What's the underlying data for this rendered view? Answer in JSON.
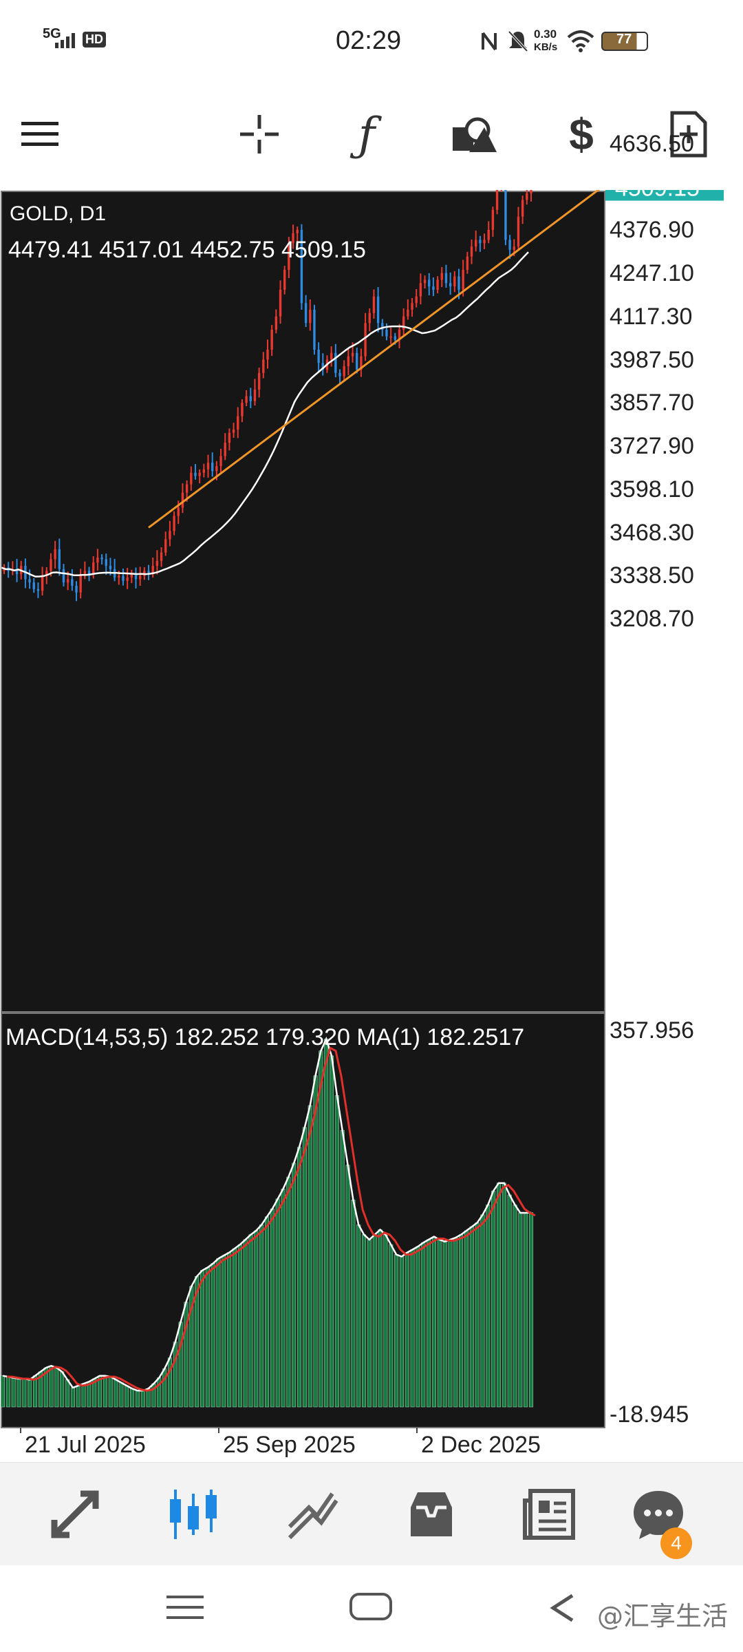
{
  "status_bar": {
    "network": "5G",
    "hd": "HD",
    "time": "02:29",
    "speed_value": "0.30",
    "speed_unit": "KB/s",
    "battery": "77"
  },
  "toolbar": {
    "icons": [
      "menu-icon",
      "crosshair-icon",
      "indicator-function-icon",
      "objects-shapes-icon",
      "trade-dollar-icon",
      "new-document-icon"
    ]
  },
  "chart_header": {
    "symbol_timeframe": "GOLD, D1",
    "ohlc": "4479.41 4517.01 4452.75 4509.15"
  },
  "price_axis": {
    "ticks": [
      "4636.50",
      "4376.90",
      "4247.10",
      "4117.30",
      "3987.50",
      "3857.70",
      "3727.90",
      "3598.10",
      "3468.30",
      "3338.50",
      "3208.70"
    ],
    "current_price": "4509.15"
  },
  "macd_header": {
    "label": "MACD(14,53,5) 182.252 179.320 MA(1) 182.2517"
  },
  "macd_axis": {
    "top": "357.956",
    "bottom": "-18.945"
  },
  "time_axis": {
    "labels": [
      "21 Jul 2025",
      "25 Sep 2025",
      "2 Dec 2025"
    ]
  },
  "bottom_nav": {
    "items": [
      "quotes-arrows-icon",
      "chart-candles-icon",
      "trade-icon",
      "history-inbox-icon",
      "news-icon",
      "chat-icon"
    ],
    "chat_badge": "4"
  },
  "watermark": "@汇享生活",
  "colors": {
    "chart_bg": "#161616",
    "bull": "#e8382f",
    "bear": "#2f8be0",
    "ma_line": "#ffffff",
    "trendline": "#f0952a",
    "price_line": "#20b2aa",
    "macd_hist": "#1a7a44",
    "macd_signal": "#e0302a",
    "active_nav": "#1e88e5"
  },
  "chart_data": [
    {
      "type": "candlestick",
      "title": "GOLD, D1",
      "x_range": [
        "2025-06-16",
        "2025-12-26"
      ],
      "ylim": [
        3208.7,
        4636.5
      ],
      "annotations": [
        "ascending trendline",
        "moving average"
      ],
      "grid": false,
      "closes": [
        3365,
        3355,
        3360,
        3345,
        3370,
        3330,
        3320,
        3300,
        3295,
        3340,
        3355,
        3390,
        3420,
        3360,
        3320,
        3330,
        3310,
        3290,
        3340,
        3355,
        3345,
        3380,
        3395,
        3390,
        3370,
        3360,
        3335,
        3340,
        3325,
        3335,
        3345,
        3330,
        3340,
        3355,
        3350,
        3370,
        3385,
        3410,
        3450,
        3475,
        3520,
        3545,
        3590,
        3615,
        3650,
        3640,
        3650,
        3660,
        3680,
        3655,
        3670,
        3700,
        3740,
        3770,
        3780,
        3820,
        3860,
        3880,
        3865,
        3900,
        3950,
        3990,
        4020,
        4080,
        4120,
        4200,
        4260,
        4340,
        4370,
        4380,
        4160,
        4100,
        4140,
        4020,
        3980,
        3960,
        3990,
        4010,
        3950,
        3940,
        3970,
        4000,
        4010,
        3960,
        4000,
        4100,
        4130,
        4180,
        4100,
        4080,
        4060,
        4060,
        4050,
        4080,
        4120,
        4140,
        4160,
        4180,
        4220,
        4230,
        4210,
        4200,
        4230,
        4250,
        4220,
        4210,
        4240,
        4200,
        4260,
        4300,
        4330,
        4350,
        4340,
        4350,
        4380,
        4440,
        4520,
        4540,
        4350,
        4320,
        4330,
        4420,
        4470,
        4490,
        4509.15
      ]
    },
    {
      "type": "line",
      "title": "MACD(14,53,5)",
      "series": [
        {
          "name": "MACD",
          "values": [
            18,
            17,
            16,
            15,
            15,
            14,
            18,
            22,
            26,
            28,
            26,
            22,
            14,
            6,
            8,
            10,
            12,
            15,
            18,
            18,
            17,
            14,
            11,
            8,
            5,
            3,
            3,
            5,
            10,
            16,
            25,
            36,
            52,
            72,
            92,
            108,
            118,
            124,
            127,
            131,
            136,
            139,
            142,
            146,
            150,
            155,
            160,
            164,
            170,
            178,
            186,
            196,
            206,
            218,
            232,
            248,
            268,
            290,
            320,
            345,
            357,
            340,
            300,
            265,
            230,
            195,
            170,
            160,
            155,
            160,
            165,
            160,
            150,
            140,
            138,
            142,
            145,
            148,
            152,
            155,
            158,
            155,
            153,
            155,
            157,
            160,
            164,
            168,
            172,
            180,
            190,
            204,
            212,
            212,
            200,
            190,
            182,
            182,
            182.252
          ]
        },
        {
          "name": "Signal",
          "values": [
            17,
            17,
            16,
            15,
            15,
            14,
            16,
            20,
            24,
            27,
            26,
            23,
            17,
            10,
            8,
            9,
            11,
            14,
            16,
            17,
            17,
            15,
            12,
            9,
            6,
            4,
            3,
            4,
            8,
            13,
            21,
            31,
            45,
            63,
            82,
            99,
            112,
            120,
            125,
            129,
            134,
            137,
            140,
            144,
            148,
            153,
            157,
            162,
            167,
            174,
            182,
            191,
            201,
            212,
            225,
            240,
            258,
            279,
            305,
            330,
            348,
            345,
            320,
            285,
            250,
            215,
            185,
            170,
            160,
            158,
            162,
            160,
            154,
            145,
            140,
            140,
            143,
            146,
            150,
            153,
            156,
            156,
            154,
            154,
            156,
            158,
            162,
            166,
            170,
            176,
            185,
            197,
            207,
            210,
            204,
            195,
            186,
            182,
            179.32
          ]
        }
      ],
      "ylim": [
        -18.945,
        357.956
      ]
    }
  ]
}
